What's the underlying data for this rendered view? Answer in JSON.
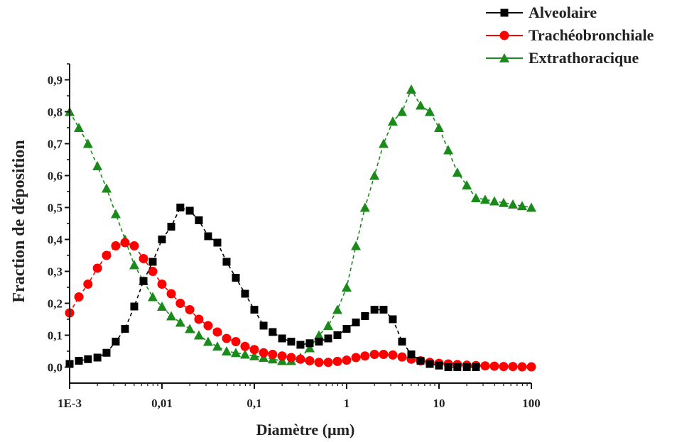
{
  "chart_data": {
    "type": "line",
    "title": "",
    "xlabel": "Diamètre (µm)",
    "ylabel": "Fraction de déposition",
    "x_scale": "log",
    "xlim": [
      0.001,
      100
    ],
    "ylim": [
      -0.05,
      0.95
    ],
    "x_ticks": [
      {
        "value": 0.001,
        "label": "1E-3"
      },
      {
        "value": 0.01,
        "label": "0,01"
      },
      {
        "value": 0.1,
        "label": "0,1"
      },
      {
        "value": 1,
        "label": "1"
      },
      {
        "value": 10,
        "label": "10"
      },
      {
        "value": 100,
        "label": "100"
      }
    ],
    "y_ticks": [
      {
        "value": 0.0,
        "label": "0,0"
      },
      {
        "value": 0.1,
        "label": "0,1"
      },
      {
        "value": 0.2,
        "label": "0,2"
      },
      {
        "value": 0.3,
        "label": "0,3"
      },
      {
        "value": 0.4,
        "label": "0,4"
      },
      {
        "value": 0.5,
        "label": "0,5"
      },
      {
        "value": 0.6,
        "label": "0,6"
      },
      {
        "value": 0.7,
        "label": "0,7"
      },
      {
        "value": 0.8,
        "label": "0,8"
      },
      {
        "value": 0.9,
        "label": "0,9"
      }
    ],
    "grid": false,
    "legend_position": "top-right",
    "series": [
      {
        "name": "Alveolaire",
        "color": "#000000",
        "marker": "square",
        "line_style": "dashed",
        "points": [
          [
            0.001,
            0.01
          ],
          [
            0.00126,
            0.02
          ],
          [
            0.00158,
            0.025
          ],
          [
            0.002,
            0.03
          ],
          [
            0.00251,
            0.045
          ],
          [
            0.00316,
            0.08
          ],
          [
            0.00398,
            0.12
          ],
          [
            0.00501,
            0.19
          ],
          [
            0.00631,
            0.27
          ],
          [
            0.00794,
            0.33
          ],
          [
            0.01,
            0.4
          ],
          [
            0.0126,
            0.44
          ],
          [
            0.0158,
            0.5
          ],
          [
            0.02,
            0.49
          ],
          [
            0.0251,
            0.46
          ],
          [
            0.0316,
            0.41
          ],
          [
            0.0398,
            0.39
          ],
          [
            0.0501,
            0.33
          ],
          [
            0.0631,
            0.28
          ],
          [
            0.0794,
            0.23
          ],
          [
            0.1,
            0.18
          ],
          [
            0.126,
            0.13
          ],
          [
            0.158,
            0.11
          ],
          [
            0.2,
            0.09
          ],
          [
            0.251,
            0.08
          ],
          [
            0.316,
            0.07
          ],
          [
            0.398,
            0.075
          ],
          [
            0.501,
            0.08
          ],
          [
            0.631,
            0.09
          ],
          [
            0.794,
            0.1
          ],
          [
            1.0,
            0.12
          ],
          [
            1.26,
            0.14
          ],
          [
            1.58,
            0.16
          ],
          [
            2.0,
            0.18
          ],
          [
            2.51,
            0.18
          ],
          [
            3.16,
            0.15
          ],
          [
            3.98,
            0.08
          ],
          [
            5.01,
            0.04
          ],
          [
            6.31,
            0.02
          ],
          [
            7.94,
            0.01
          ],
          [
            10,
            0.005
          ],
          [
            12.6,
            0.0
          ],
          [
            15.8,
            0.0
          ],
          [
            20,
            0.0
          ],
          [
            25.1,
            0.0
          ]
        ]
      },
      {
        "name": "Trachéobronchiale",
        "color": "#ff0000",
        "marker": "circle",
        "line_style": "dashed",
        "points": [
          [
            0.001,
            0.17
          ],
          [
            0.00126,
            0.22
          ],
          [
            0.00158,
            0.26
          ],
          [
            0.002,
            0.31
          ],
          [
            0.00251,
            0.35
          ],
          [
            0.00316,
            0.38
          ],
          [
            0.00398,
            0.39
          ],
          [
            0.00501,
            0.38
          ],
          [
            0.00631,
            0.34
          ],
          [
            0.00794,
            0.3
          ],
          [
            0.01,
            0.26
          ],
          [
            0.0126,
            0.23
          ],
          [
            0.0158,
            0.2
          ],
          [
            0.02,
            0.18
          ],
          [
            0.0251,
            0.15
          ],
          [
            0.0316,
            0.13
          ],
          [
            0.0398,
            0.11
          ],
          [
            0.0501,
            0.09
          ],
          [
            0.0631,
            0.08
          ],
          [
            0.0794,
            0.065
          ],
          [
            0.1,
            0.055
          ],
          [
            0.126,
            0.045
          ],
          [
            0.158,
            0.04
          ],
          [
            0.2,
            0.035
          ],
          [
            0.251,
            0.03
          ],
          [
            0.316,
            0.025
          ],
          [
            0.398,
            0.02
          ],
          [
            0.501,
            0.015
          ],
          [
            0.631,
            0.015
          ],
          [
            0.794,
            0.018
          ],
          [
            1.0,
            0.022
          ],
          [
            1.26,
            0.03
          ],
          [
            1.58,
            0.035
          ],
          [
            2.0,
            0.04
          ],
          [
            2.51,
            0.04
          ],
          [
            3.16,
            0.038
          ],
          [
            3.98,
            0.032
          ],
          [
            5.01,
            0.025
          ],
          [
            6.31,
            0.02
          ],
          [
            7.94,
            0.015
          ],
          [
            10,
            0.012
          ],
          [
            12.6,
            0.01
          ],
          [
            15.8,
            0.008
          ],
          [
            20,
            0.006
          ],
          [
            25.1,
            0.005
          ],
          [
            31.6,
            0.004
          ],
          [
            39.8,
            0.003
          ],
          [
            50.1,
            0.002
          ],
          [
            63.1,
            0.002
          ],
          [
            79.4,
            0.001
          ],
          [
            100,
            0.001
          ]
        ]
      },
      {
        "name": "Extrathoracique",
        "color": "#1a8a1a",
        "marker": "triangle",
        "line_style": "dashed",
        "points": [
          [
            0.001,
            0.8
          ],
          [
            0.00126,
            0.75
          ],
          [
            0.00158,
            0.7
          ],
          [
            0.002,
            0.63
          ],
          [
            0.00251,
            0.56
          ],
          [
            0.00316,
            0.48
          ],
          [
            0.00398,
            0.4
          ],
          [
            0.00501,
            0.32
          ],
          [
            0.00631,
            0.27
          ],
          [
            0.00794,
            0.22
          ],
          [
            0.01,
            0.19
          ],
          [
            0.0126,
            0.16
          ],
          [
            0.0158,
            0.14
          ],
          [
            0.02,
            0.12
          ],
          [
            0.0251,
            0.1
          ],
          [
            0.0316,
            0.08
          ],
          [
            0.0398,
            0.065
          ],
          [
            0.0501,
            0.05
          ],
          [
            0.0631,
            0.045
          ],
          [
            0.0794,
            0.04
          ],
          [
            0.1,
            0.035
          ],
          [
            0.126,
            0.03
          ],
          [
            0.158,
            0.025
          ],
          [
            0.2,
            0.02
          ],
          [
            0.251,
            0.02
          ],
          [
            0.316,
            0.03
          ],
          [
            0.398,
            0.06
          ],
          [
            0.501,
            0.1
          ],
          [
            0.631,
            0.13
          ],
          [
            0.794,
            0.18
          ],
          [
            1.0,
            0.25
          ],
          [
            1.26,
            0.38
          ],
          [
            1.58,
            0.5
          ],
          [
            2.0,
            0.6
          ],
          [
            2.51,
            0.7
          ],
          [
            3.16,
            0.77
          ],
          [
            3.98,
            0.8
          ],
          [
            5.01,
            0.87
          ],
          [
            6.31,
            0.82
          ],
          [
            7.94,
            0.8
          ],
          [
            10,
            0.75
          ],
          [
            12.6,
            0.68
          ],
          [
            15.8,
            0.61
          ],
          [
            20,
            0.57
          ],
          [
            25.1,
            0.53
          ],
          [
            31.6,
            0.525
          ],
          [
            39.8,
            0.52
          ],
          [
            50.1,
            0.515
          ],
          [
            63.1,
            0.51
          ],
          [
            79.4,
            0.505
          ],
          [
            100,
            0.5
          ]
        ]
      }
    ]
  }
}
